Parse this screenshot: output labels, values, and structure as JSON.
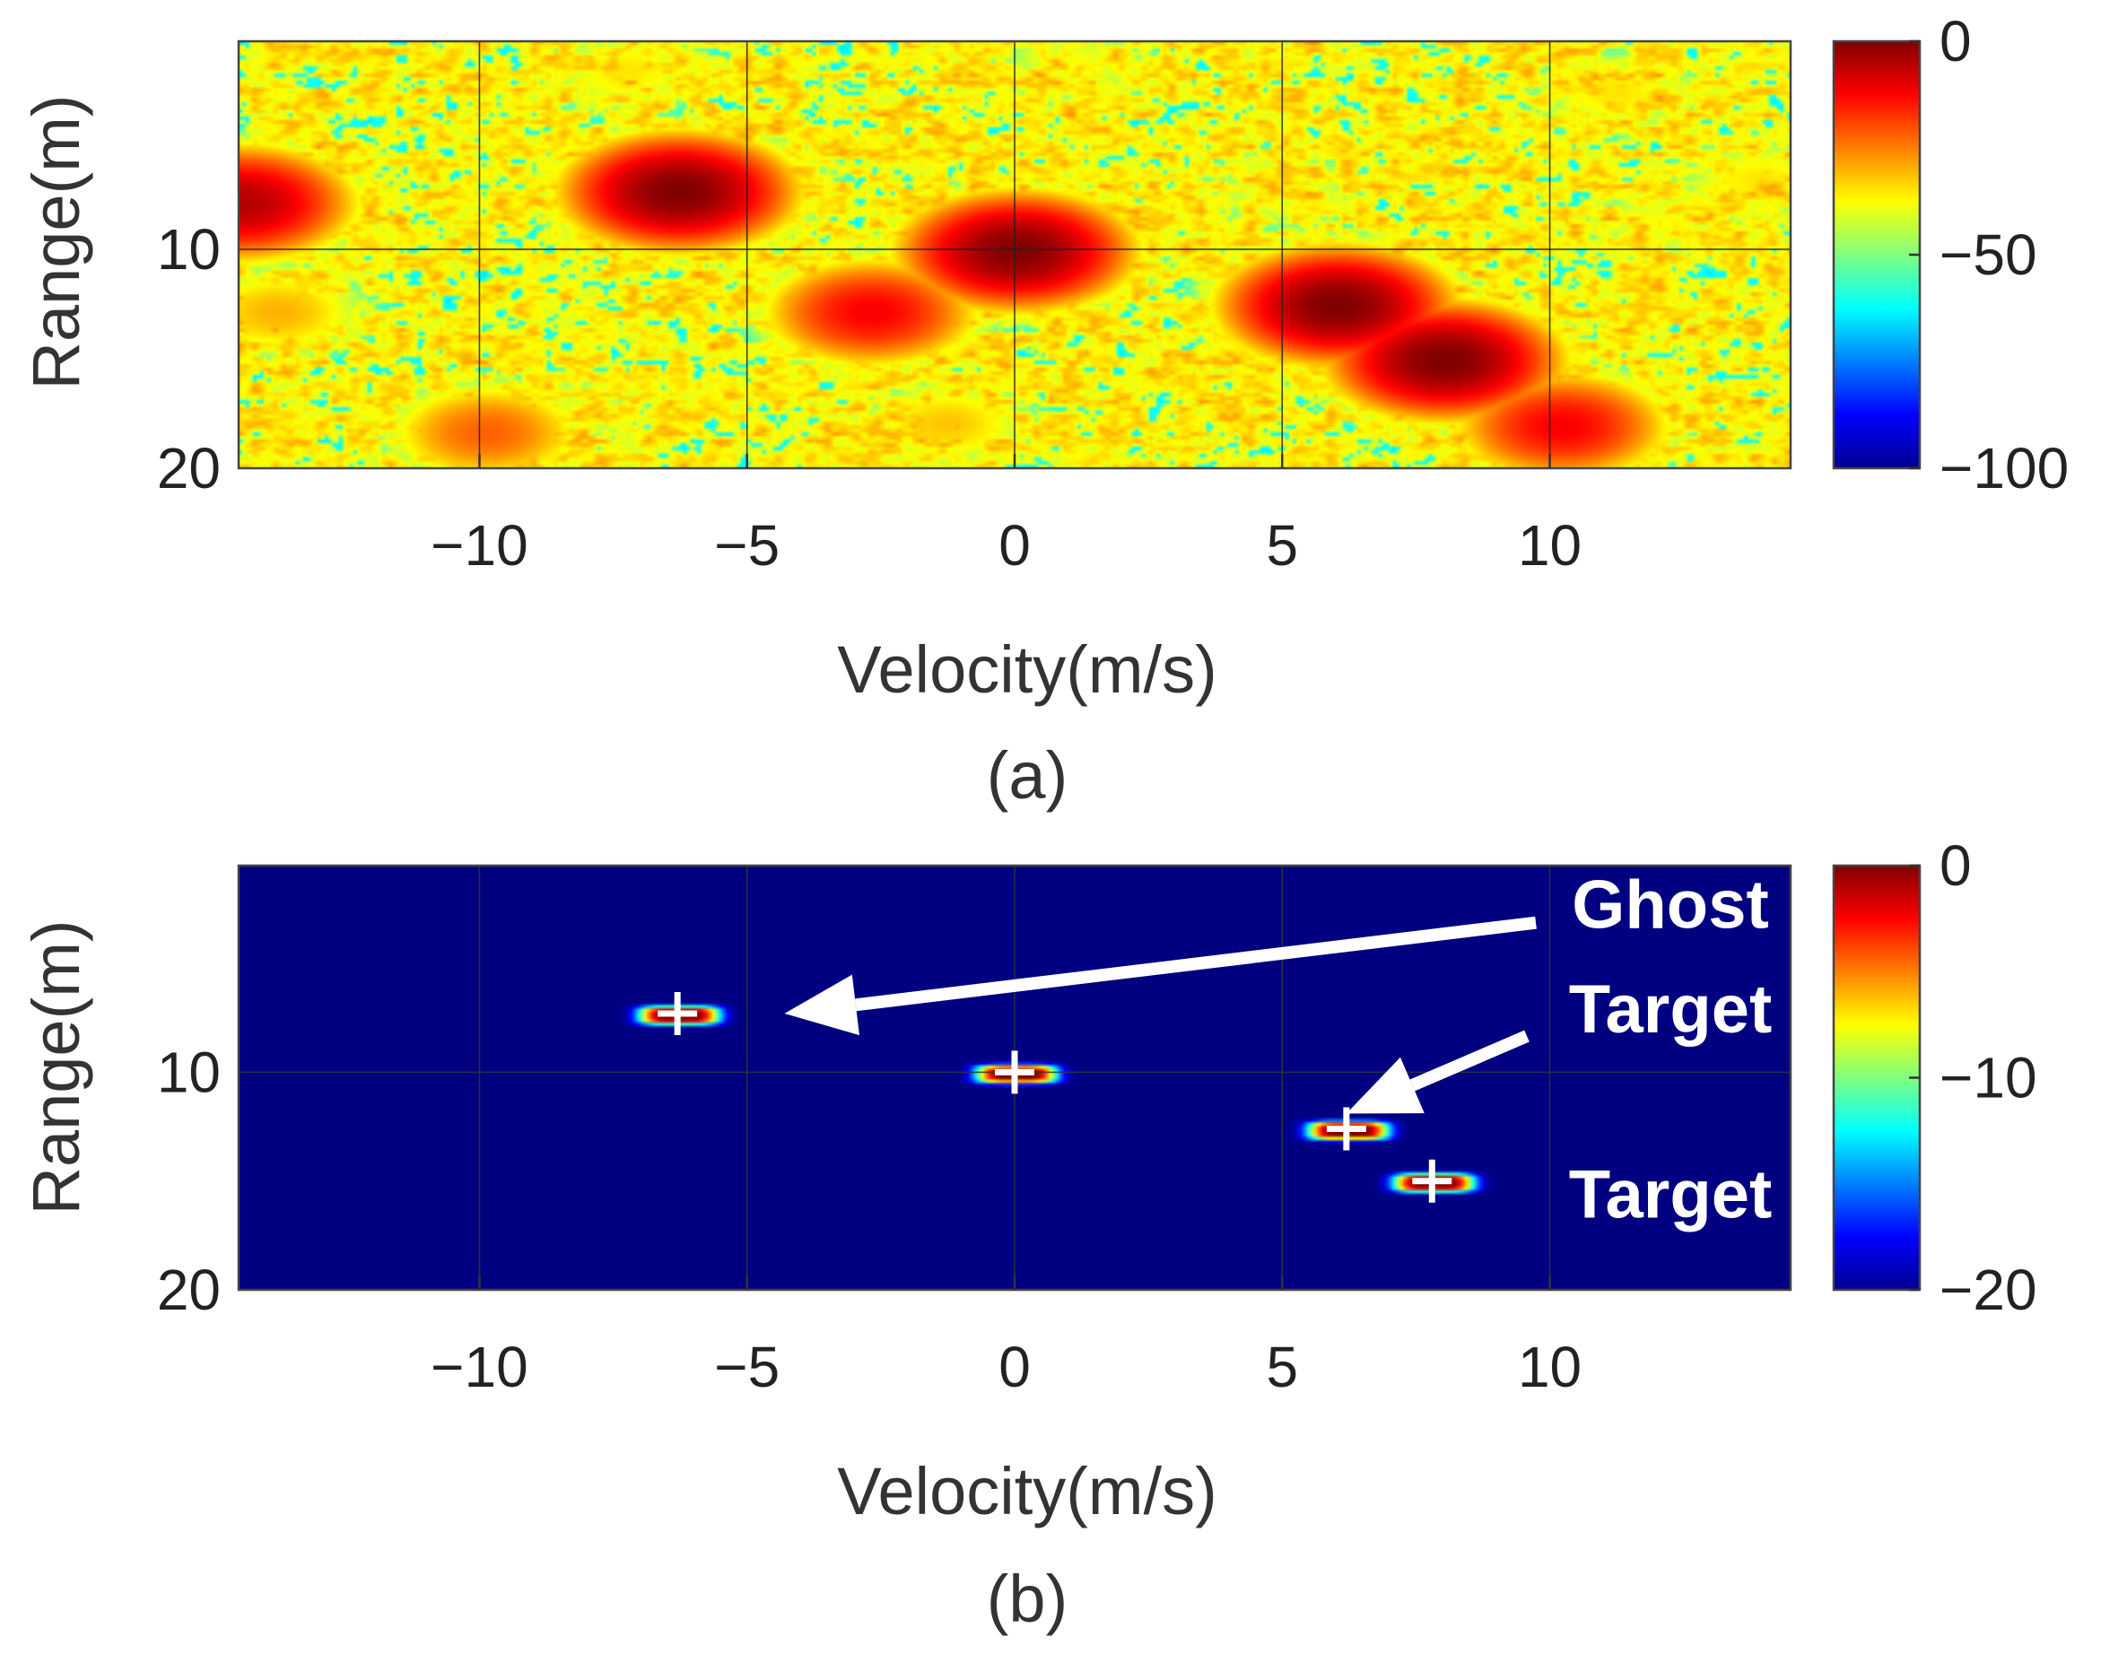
{
  "chart_data": [
    {
      "type": "heatmap",
      "caption": "(a)",
      "xlabel": "Velocity(m/s)",
      "ylabel": "Range(m)",
      "xlim": [
        -14.5,
        14.5
      ],
      "ylim": [
        20,
        0.5
      ],
      "x_ticks": [
        -10,
        -5,
        0,
        5,
        10
      ],
      "x_tick_labels": [
        "−10",
        "−5",
        "0",
        "5",
        "10"
      ],
      "y_ticks": [
        10,
        20
      ],
      "y_tick_labels": [
        "10",
        "20"
      ],
      "grid": true,
      "colorbar": {
        "range": [
          -100,
          0
        ],
        "ticks": [
          0,
          -50,
          -100
        ],
        "tick_labels": [
          "0",
          "−50",
          "−100"
        ]
      },
      "background_level": -40,
      "peaks": [
        {
          "v": -14.5,
          "r": 7.8,
          "level": -5
        },
        {
          "v": -6.3,
          "r": 7.3,
          "level": 0
        },
        {
          "v": -7.3,
          "r": 1.8,
          "level": -35
        },
        {
          "v": 1.1,
          "r": 1.5,
          "level": -38
        },
        {
          "v": 0,
          "r": 10.0,
          "level": 0
        },
        {
          "v": -2.7,
          "r": 12.8,
          "level": -12
        },
        {
          "v": -13.8,
          "r": 12.8,
          "level": -30
        },
        {
          "v": 6.0,
          "r": 12.5,
          "level": 0
        },
        {
          "v": 8.0,
          "r": 15.0,
          "level": 0
        },
        {
          "v": -9.9,
          "r": 18.3,
          "level": -22
        },
        {
          "v": -1.3,
          "r": 17.9,
          "level": -32
        },
        {
          "v": 10.2,
          "r": 18.0,
          "level": -12
        },
        {
          "v": -4.8,
          "r": 6.2,
          "level": -38
        },
        {
          "v": 5.0,
          "r": 7.2,
          "level": -38
        },
        {
          "v": 11.2,
          "r": 2.8,
          "level": -35
        },
        {
          "v": 13.9,
          "r": 6.8,
          "level": -35
        },
        {
          "v": 12.1,
          "r": 8.7,
          "level": -38
        },
        {
          "v": -8.3,
          "r": 17.3,
          "level": -40
        }
      ]
    },
    {
      "type": "heatmap",
      "caption": "(b)",
      "xlabel": "Velocity(m/s)",
      "ylabel": "Range(m)",
      "xlim": [
        -14.5,
        14.5
      ],
      "ylim": [
        20,
        0.5
      ],
      "x_ticks": [
        -10,
        -5,
        0,
        5,
        10
      ],
      "x_tick_labels": [
        "−10",
        "−5",
        "0",
        "5",
        "10"
      ],
      "y_ticks": [
        10,
        20
      ],
      "y_tick_labels": [
        "10",
        "20"
      ],
      "grid": true,
      "colorbar": {
        "range": [
          -20,
          0
        ],
        "ticks": [
          0,
          -10,
          -20
        ],
        "tick_labels": [
          "0",
          "−10",
          "−20"
        ]
      },
      "background_level": -20,
      "detections": [
        {
          "v": -6.3,
          "r": 7.3
        },
        {
          "v": 0,
          "r": 10.0
        },
        {
          "v": 6.2,
          "r": 12.6
        },
        {
          "v": 7.8,
          "r": 15.0
        }
      ],
      "annotations": [
        {
          "text": "Ghost",
          "v": 11.5,
          "r": 2.3,
          "arrow_to": {
            "v": -4.3,
            "r": 7.3
          }
        },
        {
          "text": "Target",
          "v": 11.5,
          "r": 7.1,
          "arrow_to": {
            "v": 6.2,
            "r": 11.9
          }
        },
        {
          "text": "Target",
          "v": 11.5,
          "r": 15.6
        }
      ]
    }
  ]
}
